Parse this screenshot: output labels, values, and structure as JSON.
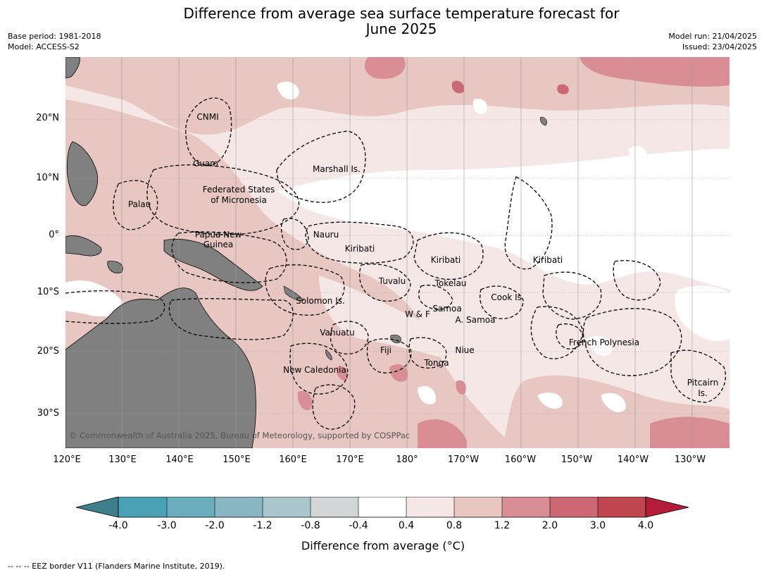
{
  "title_line1": "Difference from average sea surface temperature forecast for",
  "title_line2": "June 2025",
  "meta": {
    "base_period": "Base period: 1981-2018",
    "model": "Model: ACCESS-S2",
    "model_run": "Model run: 21/04/2025",
    "issued": "Issued: 23/04/2025"
  },
  "lat_labels": [
    "20°N",
    "10°N",
    "0°",
    "10°S",
    "20°S",
    "30°S"
  ],
  "lon_labels": [
    "120°E",
    "130°E",
    "140°E",
    "150°E",
    "160°E",
    "170°E",
    "180°",
    "170°W",
    "160°W",
    "150°W",
    "140°W",
    "130°W"
  ],
  "regions": [
    "CNMI",
    "Guam",
    "Marshall Is.",
    "Federated States",
    "of Micronesia",
    "Palau",
    "Papua New",
    "Guinea",
    "Nauru",
    "Kiribati",
    "Kiribati",
    "Kiribati",
    "Tuvalu",
    "Tokelau",
    "Cook Is.",
    "Solomon Is.",
    "W & F",
    "Samoa",
    "A. Samoa",
    "Vanuatu",
    "Fiji",
    "Niue",
    "French Polynesia",
    "Tonga",
    "New Caledonia",
    "Pitcairn",
    "Is."
  ],
  "copyright": "© Commonwealth of Australia 2025, Bureau of Meteorology, supported by COSPPac",
  "colorbar": {
    "ticks": [
      "-4.0",
      "-3.0",
      "-2.0",
      "-1.2",
      "-0.8",
      "-0.4",
      "0.4",
      "0.8",
      "1.2",
      "2.0",
      "3.0",
      "4.0"
    ],
    "colors": [
      "#3d7f8a",
      "#4aa0b4",
      "#6aaebd",
      "#88b6c2",
      "#a8c6cb",
      "#d2d6d6",
      "#ffffff",
      "#f5e7e5",
      "#e8c6c1",
      "#d98e96",
      "#cc6874",
      "#c0474f",
      "#b31d3a"
    ],
    "label": "Difference from average (°C)"
  },
  "footnote": "--  --  -- EEZ border V11 (Flanders Marine Institute, 2019)."
}
